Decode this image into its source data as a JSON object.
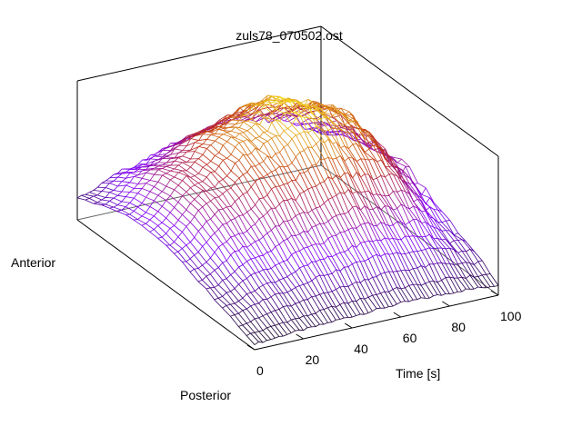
{
  "chart_data": {
    "type": "surface",
    "title": "zuls78_070502.ost",
    "xlabel": "Time [s]",
    "ylabel_top": "Anterior",
    "ylabel_bottom": "Posterior",
    "x_ticks": [
      "0",
      "20",
      "40",
      "60",
      "80",
      "100"
    ],
    "xlim": [
      0,
      100
    ],
    "grid": false,
    "colormap": [
      "#000000",
      "#8000ff",
      "#c03010",
      "#ffff20"
    ],
    "note_values": "z values are relative amplitude estimated from the rendered mesh (0–1 scale, not printed on chart)",
    "y_profile_peaks": [
      {
        "time_s": 0,
        "peak_relative_z": 0.3
      },
      {
        "time_s": 20,
        "peak_relative_z": 0.58
      },
      {
        "time_s": 40,
        "peak_relative_z": 0.8
      },
      {
        "time_s": 60,
        "peak_relative_z": 0.95
      },
      {
        "time_s": 80,
        "peak_relative_z": 0.82
      },
      {
        "time_s": 100,
        "peak_relative_z": 0.45
      }
    ]
  }
}
